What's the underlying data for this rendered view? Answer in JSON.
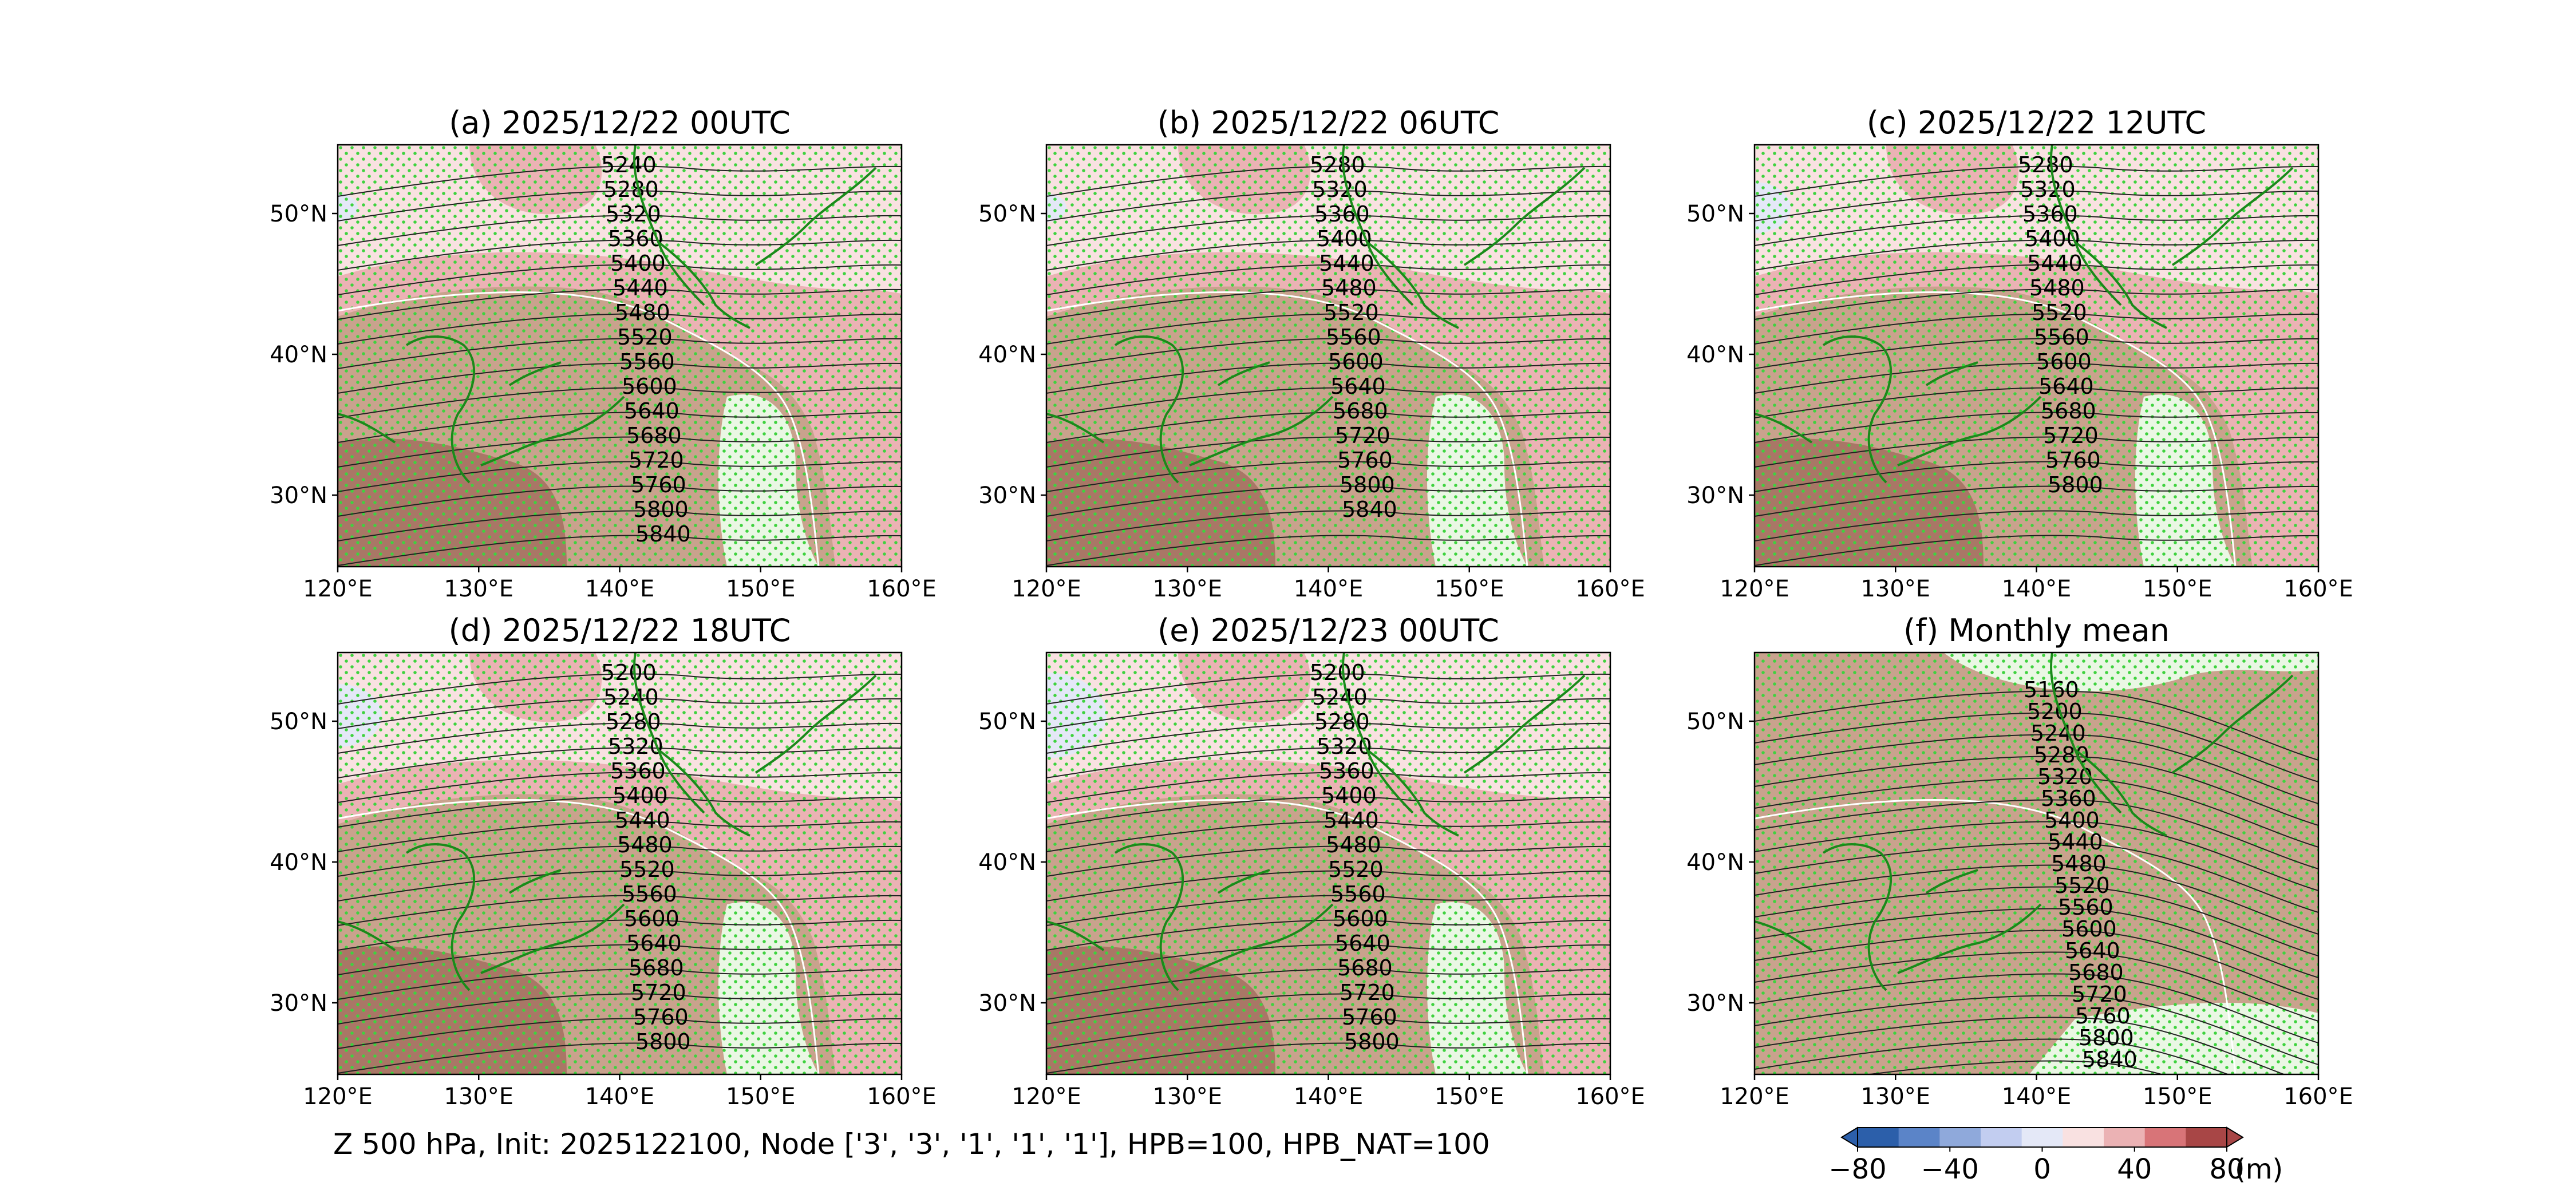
{
  "figure": {
    "caption": "Z 500 hPa, Init: 2025122100, Node ['3', '3', '1', '1', '1'], HPB=100, HPB_NAT=100",
    "colorbar": {
      "ticks": [
        "−80",
        "−40",
        "0",
        "40",
        "80"
      ],
      "unit": "(m)",
      "colors": [
        "#2c5faa",
        "#5b84c8",
        "#8fa9db",
        "#c2cdf0",
        "#e4e8f7",
        "#f9e1e1",
        "#ebb2b4",
        "#d87478",
        "#a84646"
      ]
    },
    "lon_ticks": [
      "120°E",
      "130°E",
      "140°E",
      "150°E",
      "160°E"
    ],
    "lat_ticks": [
      "50°N",
      "40°N",
      "30°N"
    ]
  },
  "panels": [
    {
      "title": "(a) 2025/12/22 00UTC",
      "contour_labels": [
        "5240",
        "5280",
        "5320",
        "5360",
        "5400",
        "5440",
        "5480",
        "5520",
        "5560",
        "5600",
        "5640",
        "5680",
        "5720",
        "5760",
        "5800",
        "5840"
      ]
    },
    {
      "title": "(b) 2025/12/22 06UTC",
      "contour_labels": [
        "5280",
        "5320",
        "5360",
        "5400",
        "5440",
        "5480",
        "5520",
        "5560",
        "5600",
        "5640",
        "5680",
        "5720",
        "5760",
        "5800",
        "5840"
      ]
    },
    {
      "title": "(c) 2025/12/22 12UTC",
      "contour_labels": [
        "5280",
        "5320",
        "5360",
        "5400",
        "5440",
        "5480",
        "5520",
        "5560",
        "5600",
        "5640",
        "5680",
        "5720",
        "5760",
        "5800"
      ]
    },
    {
      "title": "(d) 2025/12/22 18UTC",
      "contour_labels": [
        "5200",
        "5240",
        "5280",
        "5320",
        "5360",
        "5400",
        "5440",
        "5480",
        "5520",
        "5560",
        "5600",
        "5640",
        "5680",
        "5720",
        "5760",
        "5800"
      ]
    },
    {
      "title": "(e) 2025/12/23 00UTC",
      "contour_labels": [
        "5200",
        "5240",
        "5280",
        "5320",
        "5360",
        "5400",
        "5440",
        "5480",
        "5520",
        "5560",
        "5600",
        "5640",
        "5680",
        "5720",
        "5760",
        "5800"
      ]
    },
    {
      "title": "(f) Monthly mean",
      "contour_labels": [
        "5160",
        "5200",
        "5240",
        "5280",
        "5320",
        "5360",
        "5400",
        "5440",
        "5480",
        "5520",
        "5560",
        "5600",
        "5640",
        "5680",
        "5720",
        "5760",
        "5800",
        "5840"
      ]
    }
  ]
}
